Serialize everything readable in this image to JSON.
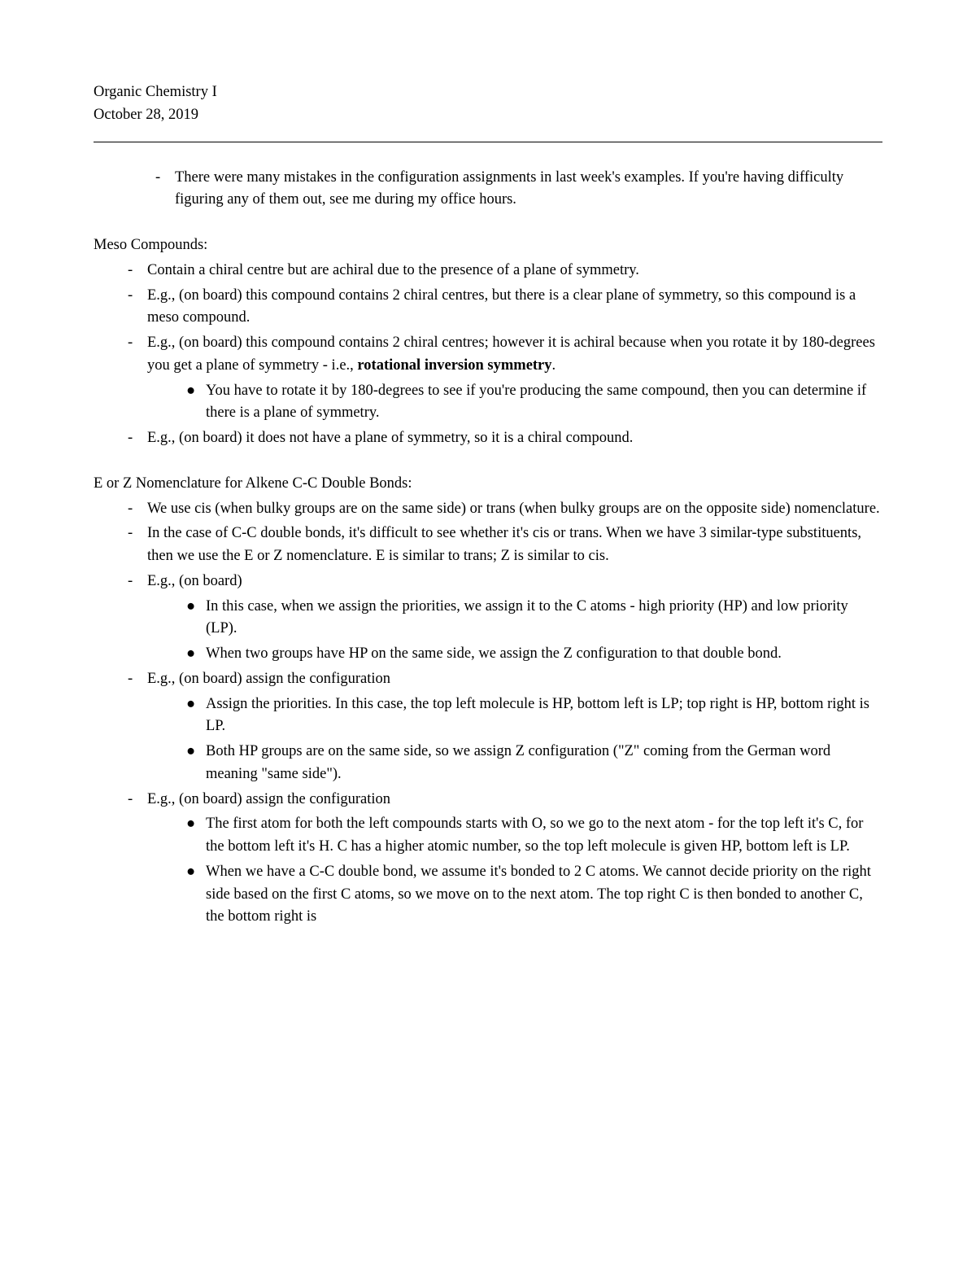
{
  "header": {
    "course": "Organic Chemistry I",
    "date": "October 28, 2019"
  },
  "topNote": "There were many mistakes in the configuration assignments in last week's examples. If you're having difficulty figuring any of them out, see me during my office hours.",
  "section1": {
    "heading": "Meso Compounds:",
    "items": [
      {
        "text": "Contain a chiral centre but are achiral due to the presence of a plane of symmetry."
      },
      {
        "text": "E.g., (on board) this compound contains 2 chiral centres, but there is a clear plane of symmetry, so this compound is a meso compound."
      },
      {
        "text_pre": "E.g., (on board) this compound contains 2 chiral centres; however it is achiral because when you rotate it by 180-degrees you get a plane of symmetry - i.e., ",
        "text_bold": "rotational inversion symmetry",
        "text_post": ".",
        "subitems": [
          "You have to rotate it by 180-degrees to see if you're producing the same compound, then you can determine if there is a plane of symmetry."
        ]
      },
      {
        "text": "E.g., (on board) it does not have a plane of symmetry, so it is a chiral compound."
      }
    ]
  },
  "section2": {
    "heading": "E or Z Nomenclature for Alkene C-C Double Bonds:",
    "items": [
      {
        "text": "We use cis (when bulky groups are on the same side) or trans (when bulky groups are on the opposite side) nomenclature."
      },
      {
        "text": "In the case of C-C double bonds, it's difficult to see whether it's cis or trans. When we have 3 similar-type substituents, then we use the E or Z nomenclature. E is similar to trans; Z is similar to cis."
      },
      {
        "text": "E.g., (on board)",
        "subitems": [
          "In this case, when we assign the priorities, we assign it to the C atoms - high priority (HP) and low priority (LP).",
          "When two groups have HP on the same side, we assign the Z configuration to that double bond."
        ]
      },
      {
        "text": "E.g., (on board) assign the configuration",
        "subitems": [
          "Assign the priorities. In this case, the top left molecule is HP, bottom left is LP; top right is HP, bottom right is LP.",
          "Both HP groups are on the same side, so we assign Z configuration (\"Z\" coming from the German word meaning \"same side\")."
        ]
      },
      {
        "text": "E.g., (on board) assign the configuration",
        "subitems": [
          "The first atom for both the left compounds starts with O, so we go to the next atom - for the top left it's C, for the bottom left it's H. C has a higher atomic number, so the top left molecule is given HP, bottom left is LP.",
          "When we have a C-C double bond, we assume it's bonded to 2 C atoms. We cannot decide priority on the right side based on the first C atoms, so we move on to the next atom. The top right C is then bonded to another C, the bottom right is"
        ]
      }
    ]
  }
}
